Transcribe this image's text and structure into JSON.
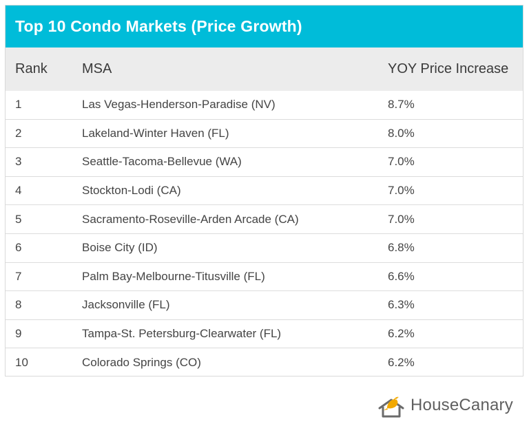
{
  "title": "Top 10 Condo Markets (Price Growth)",
  "colors": {
    "title_bg": "#00bcd9",
    "header_bg": "#ececec",
    "logo_bird": "#f2a900",
    "logo_house": "#6b6b6b"
  },
  "chart_data": {
    "type": "table",
    "title": "Top 10 Condo Markets (Price Growth)",
    "columns": [
      "Rank",
      "MSA",
      "YOY Price Increase"
    ],
    "rows": [
      {
        "rank": "1",
        "msa": "Las Vegas-Henderson-Paradise (NV)",
        "yoy": "8.7%"
      },
      {
        "rank": "2",
        "msa": "Lakeland-Winter Haven (FL)",
        "yoy": "8.0%"
      },
      {
        "rank": "3",
        "msa": "Seattle-Tacoma-Bellevue (WA)",
        "yoy": "7.0%"
      },
      {
        "rank": "4",
        "msa": "Stockton-Lodi (CA)",
        "yoy": "7.0%"
      },
      {
        "rank": "5",
        "msa": "Sacramento-Roseville-Arden Arcade (CA)",
        "yoy": "7.0%"
      },
      {
        "rank": "6",
        "msa": "Boise City (ID)",
        "yoy": "6.8%"
      },
      {
        "rank": "7",
        "msa": "Palm Bay-Melbourne-Titusville (FL)",
        "yoy": "6.6%"
      },
      {
        "rank": "8",
        "msa": "Jacksonville (FL)",
        "yoy": "6.3%"
      },
      {
        "rank": "9",
        "msa": "Tampa-St. Petersburg-Clearwater (FL)",
        "yoy": "6.2%"
      },
      {
        "rank": "10",
        "msa": "Colorado Springs (CO)",
        "yoy": "6.2%"
      }
    ]
  },
  "logo": {
    "text": "HouseCanary",
    "icon": "canary-house-icon"
  }
}
